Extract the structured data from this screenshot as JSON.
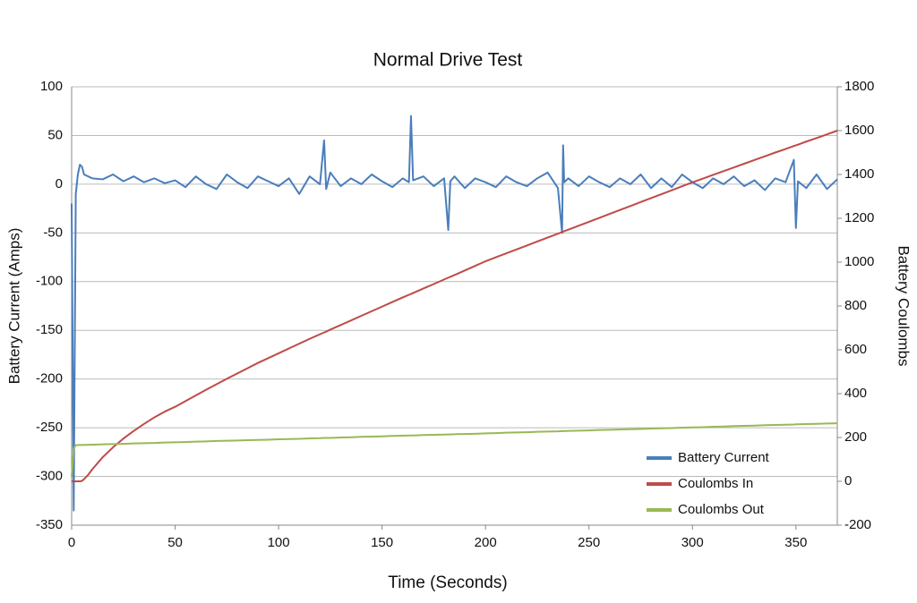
{
  "chart_data": {
    "type": "line",
    "title": "Normal Drive Test",
    "x_label": "Time (Seconds)",
    "y_label": "Battery Current (Amps)",
    "y2_label": "Battery Coulombs",
    "x": [
      0,
      1,
      2,
      3,
      4,
      5,
      6,
      8,
      10,
      15,
      20,
      25,
      30,
      35,
      40,
      45,
      50,
      55,
      60,
      65,
      70,
      75,
      80,
      85,
      90,
      95,
      100,
      105,
      110,
      115,
      120,
      122,
      123,
      125,
      130,
      135,
      140,
      145,
      150,
      155,
      160,
      163,
      164,
      165,
      170,
      175,
      180,
      182,
      183,
      185,
      190,
      195,
      200,
      205,
      210,
      215,
      220,
      225,
      230,
      235,
      237,
      237.5,
      238,
      240,
      245,
      250,
      255,
      260,
      265,
      270,
      275,
      280,
      285,
      290,
      295,
      300,
      305,
      310,
      315,
      320,
      325,
      330,
      335,
      340,
      345,
      349,
      350,
      351,
      355,
      360,
      365,
      370
    ],
    "series": [
      {
        "name": "Battery Current",
        "color": "#4a7ebb",
        "axis": "y",
        "values": [
          -20,
          -335,
          -10,
          10,
          20,
          18,
          10,
          8,
          6,
          5,
          10,
          3,
          8,
          2,
          6,
          1,
          4,
          -3,
          8,
          0,
          -5,
          10,
          2,
          -4,
          8,
          3,
          -2,
          6,
          -10,
          8,
          0,
          45,
          -5,
          12,
          -2,
          6,
          0,
          10,
          3,
          -3,
          6,
          2,
          70,
          4,
          8,
          -2,
          6,
          -47,
          3,
          8,
          -4,
          6,
          2,
          -3,
          8,
          2,
          -2,
          6,
          12,
          -4,
          -50,
          40,
          2,
          6,
          -2,
          8,
          2,
          -3,
          6,
          0,
          10,
          -4,
          6,
          -3,
          10,
          2,
          -4,
          6,
          0,
          8,
          -2,
          4,
          -6,
          6,
          2,
          25,
          -45,
          3,
          -4,
          10,
          -5,
          5
        ]
      },
      {
        "name": "Coulombs In",
        "color": "#be4b48",
        "axis": "y2",
        "values": [
          0,
          0,
          0,
          0,
          0,
          2,
          10,
          30,
          55,
          110,
          155,
          195,
          230,
          262,
          292,
          318,
          340,
          366,
          392,
          418,
          443,
          468,
          492,
          516,
          540,
          562,
          584,
          606,
          628,
          650,
          671,
          679,
          683,
          692,
          713,
          734,
          755,
          776,
          797,
          818,
          839,
          851,
          855,
          859,
          880,
          900,
          921,
          929,
          933,
          941,
          962,
          983,
          1004,
          1022,
          1040,
          1058,
          1076,
          1094,
          1112,
          1130,
          1137,
          1139,
          1141,
          1148,
          1166,
          1184,
          1202,
          1220,
          1238,
          1256,
          1274,
          1292,
          1310,
          1328,
          1346,
          1364,
          1381,
          1398,
          1415,
          1432,
          1449,
          1466,
          1483,
          1500,
          1516,
          1530,
          1533,
          1536,
          1550,
          1566,
          1583,
          1600
        ]
      },
      {
        "name": "Coulombs Out",
        "color": "#98b954",
        "axis": "y2",
        "values": [
          20,
          150,
          165,
          166,
          166,
          166,
          166,
          167,
          167,
          169,
          170,
          171,
          173,
          174,
          175,
          177,
          178,
          179,
          181,
          182,
          184,
          185,
          186,
          188,
          189,
          190,
          192,
          193,
          194,
          196,
          197,
          198,
          198,
          198,
          200,
          201,
          203,
          204,
          205,
          207,
          208,
          209,
          209,
          209,
          211,
          212,
          213,
          214,
          214,
          215,
          216,
          217,
          219,
          220,
          222,
          223,
          224,
          226,
          227,
          228,
          229,
          229,
          229,
          230,
          231,
          232,
          234,
          235,
          237,
          238,
          239,
          241,
          242,
          243,
          245,
          246,
          247,
          249,
          250,
          252,
          253,
          254,
          256,
          257,
          258,
          259,
          260,
          260,
          261,
          262,
          264,
          265
        ]
      }
    ],
    "xlim": [
      0,
      370
    ],
    "xticks": [
      0,
      50,
      100,
      150,
      200,
      250,
      300,
      350
    ],
    "ylim": [
      -350,
      100
    ],
    "yticks": [
      -350,
      -300,
      -250,
      -200,
      -150,
      -100,
      -50,
      0,
      50,
      100
    ],
    "y2lim": [
      -200,
      1800
    ],
    "y2ticks": [
      -200,
      0,
      200,
      400,
      600,
      800,
      1000,
      1200,
      1400,
      1600,
      1800
    ],
    "grid": true,
    "legend": "lower right"
  }
}
